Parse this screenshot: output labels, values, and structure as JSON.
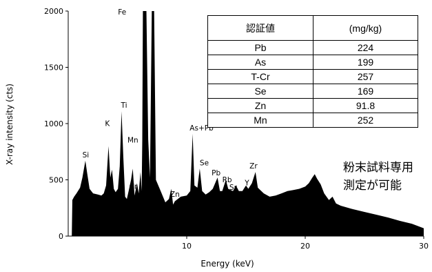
{
  "chart_data": {
    "type": "area",
    "xlabel": "Energy (keV)",
    "ylabel": "X-ray intensity (cts)",
    "xlim": [
      0,
      30
    ],
    "ylim": [
      0,
      2000
    ],
    "x_ticks": [
      10,
      20,
      30
    ],
    "y_ticks": [
      0,
      500,
      1000,
      1500,
      2000
    ],
    "grid": false,
    "fill_color": "#000000",
    "spectrum": [
      [
        0.3,
        0
      ],
      [
        0.35,
        320
      ],
      [
        0.5,
        350
      ],
      [
        0.7,
        380
      ],
      [
        1.0,
        430
      ],
      [
        1.2,
        520
      ],
      [
        1.45,
        670
      ],
      [
        1.6,
        560
      ],
      [
        1.8,
        420
      ],
      [
        2.1,
        380
      ],
      [
        2.5,
        370
      ],
      [
        2.8,
        360
      ],
      [
        3.0,
        380
      ],
      [
        3.2,
        450
      ],
      [
        3.4,
        800
      ],
      [
        3.55,
        520
      ],
      [
        3.7,
        590
      ],
      [
        3.85,
        420
      ],
      [
        4.0,
        390
      ],
      [
        4.2,
        420
      ],
      [
        4.35,
        620
      ],
      [
        4.5,
        1110
      ],
      [
        4.65,
        700
      ],
      [
        4.8,
        350
      ],
      [
        4.95,
        330
      ],
      [
        5.1,
        400
      ],
      [
        5.3,
        500
      ],
      [
        5.45,
        600
      ],
      [
        5.6,
        360
      ],
      [
        5.8,
        470
      ],
      [
        5.95,
        380
      ],
      [
        6.1,
        570
      ],
      [
        6.2,
        400
      ],
      [
        6.25,
        850
      ],
      [
        6.3,
        2000
      ],
      [
        6.6,
        2000
      ],
      [
        6.75,
        860
      ],
      [
        6.9,
        520
      ],
      [
        7.05,
        2000
      ],
      [
        7.25,
        2000
      ],
      [
        7.4,
        500
      ],
      [
        7.8,
        400
      ],
      [
        8.2,
        300
      ],
      [
        8.5,
        330
      ],
      [
        8.7,
        420
      ],
      [
        8.85,
        280
      ],
      [
        9.0,
        310
      ],
      [
        9.5,
        350
      ],
      [
        10.0,
        360
      ],
      [
        10.3,
        400
      ],
      [
        10.5,
        910
      ],
      [
        10.65,
        450
      ],
      [
        10.9,
        430
      ],
      [
        11.1,
        600
      ],
      [
        11.3,
        400
      ],
      [
        11.6,
        370
      ],
      [
        11.9,
        390
      ],
      [
        12.2,
        420
      ],
      [
        12.6,
        520
      ],
      [
        12.8,
        400
      ],
      [
        13.0,
        400
      ],
      [
        13.3,
        500
      ],
      [
        13.5,
        420
      ],
      [
        13.9,
        400
      ],
      [
        14.15,
        450
      ],
      [
        14.4,
        400
      ],
      [
        14.7,
        400
      ],
      [
        15.0,
        450
      ],
      [
        15.2,
        420
      ],
      [
        15.5,
        470
      ],
      [
        15.8,
        570
      ],
      [
        16.0,
        430
      ],
      [
        16.5,
        380
      ],
      [
        17.0,
        350
      ],
      [
        17.5,
        360
      ],
      [
        18.0,
        380
      ],
      [
        18.5,
        400
      ],
      [
        19.0,
        410
      ],
      [
        19.5,
        420
      ],
      [
        20.0,
        440
      ],
      [
        20.3,
        470
      ],
      [
        20.6,
        520
      ],
      [
        20.8,
        550
      ],
      [
        21.0,
        510
      ],
      [
        21.3,
        460
      ],
      [
        21.6,
        380
      ],
      [
        22.0,
        320
      ],
      [
        22.3,
        350
      ],
      [
        22.6,
        290
      ],
      [
        23.0,
        270
      ],
      [
        24.0,
        240
      ],
      [
        25.0,
        215
      ],
      [
        26.0,
        190
      ],
      [
        27.0,
        165
      ],
      [
        28.0,
        135
      ],
      [
        29.0,
        110
      ],
      [
        30.0,
        70
      ]
    ],
    "peak_labels": [
      {
        "text": "Si",
        "x": 1.2,
        "y": 700
      },
      {
        "text": "K",
        "x": 3.1,
        "y": 980
      },
      {
        "text": "Ti",
        "x": 4.45,
        "y": 1140
      },
      {
        "text": "Mn",
        "x": 5.0,
        "y": 830
      },
      {
        "text": "Cr",
        "x": 5.15,
        "y": 420
      },
      {
        "text": "Fe",
        "x": 4.2,
        "y": 1970
      },
      {
        "text": "Zn",
        "x": 8.6,
        "y": 350
      },
      {
        "text": "As+Pb",
        "x": 10.25,
        "y": 940
      },
      {
        "text": "Se",
        "x": 11.1,
        "y": 630
      },
      {
        "text": "Pb",
        "x": 12.1,
        "y": 540
      },
      {
        "text": "Rb",
        "x": 13.0,
        "y": 480
      },
      {
        "text": "Sr",
        "x": 13.6,
        "y": 410
      },
      {
        "text": "Y",
        "x": 14.9,
        "y": 450
      },
      {
        "text": "Zr",
        "x": 15.3,
        "y": 600
      }
    ]
  },
  "table": {
    "headers": [
      "認証値",
      "(mg/kg)"
    ],
    "rows": [
      [
        "Pb",
        "224"
      ],
      [
        "As",
        "199"
      ],
      [
        "T-Cr",
        "257"
      ],
      [
        "Se",
        "169"
      ],
      [
        "Zn",
        "91.8"
      ],
      [
        "Mn",
        "252"
      ]
    ]
  },
  "note": {
    "line1": "粉末試料専用",
    "line2": "測定が可能"
  }
}
